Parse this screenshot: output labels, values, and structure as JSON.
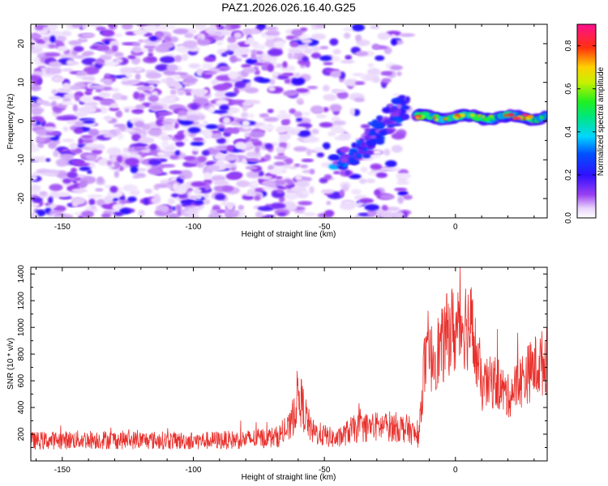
{
  "title": "PAZ1.2026.026.16.40.G25",
  "colors": {
    "snr_line": "#e8302c",
    "axis": "#000000",
    "background": "#ffffff"
  },
  "chart_data": [
    {
      "type": "heatmap",
      "title": "PAZ1.2026.026.16.40.G25",
      "xlabel": "Height of straight line (km)",
      "ylabel": "Frequency (Hz)",
      "xlim": [
        -162,
        35
      ],
      "ylim": [
        -25,
        25
      ],
      "xticks": [
        -150,
        -100,
        -50,
        0
      ],
      "yticks": [
        -20,
        -10,
        0,
        10,
        20
      ],
      "grid": false,
      "features": [
        {
          "x_range": [
            -162,
            -20
          ],
          "y_range": [
            -25,
            25
          ],
          "description": "scattered low-amplitude noise"
        },
        {
          "x_start": -45,
          "y_start": -12,
          "x_end": -18,
          "y_end": 5,
          "peak_amplitude": 0.35
        },
        {
          "x_start": -15,
          "y_start": 1,
          "x_end": 35,
          "y_end": 1,
          "peak_amplitude": 0.9
        }
      ]
    },
    {
      "type": "colorbar",
      "label": "Normalized spectral amplitude",
      "range": [
        0.0,
        0.9
      ],
      "ticks": [
        "0.0",
        "0.2",
        "0.4",
        "0.6",
        "0.8"
      ]
    },
    {
      "type": "line",
      "xlabel": "Height of straight line (km)",
      "ylabel": "SNR (10 * v/v)",
      "xlim": [
        -162,
        35
      ],
      "ylim": [
        0,
        1450
      ],
      "xticks": [
        -150,
        -100,
        -50,
        0
      ],
      "yticks": [
        200,
        400,
        600,
        800,
        1000,
        1200,
        1400
      ],
      "grid": false,
      "envelope": {
        "x": [
          -162,
          -140,
          -120,
          -100,
          -80,
          -68,
          -63,
          -60,
          -55,
          -45,
          -40,
          -35,
          -25,
          -18,
          -14,
          -12,
          -8,
          -5,
          -2,
          0,
          3,
          6,
          10,
          15,
          20,
          25,
          30,
          35
        ],
        "y": [
          150,
          160,
          155,
          150,
          160,
          180,
          250,
          500,
          220,
          160,
          230,
          250,
          260,
          240,
          170,
          700,
          800,
          850,
          1000,
          950,
          1050,
          1000,
          550,
          600,
          480,
          600,
          700,
          750
        ]
      }
    }
  ]
}
